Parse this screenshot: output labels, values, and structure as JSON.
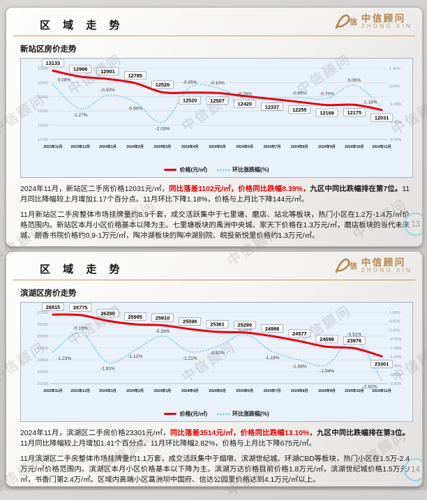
{
  "page": {
    "watermark": "中信顾问"
  },
  "slides": [
    {
      "header": {
        "title": "区 域 走 势",
        "logo_mark_char": "信",
        "logo_name": "中信顾问",
        "logo_sub": "ZHONG XIN"
      },
      "section_title": "新站区房价走势",
      "page_number": "13",
      "chart_index": 0,
      "paragraphs": [
        {
          "segments": [
            {
              "t": "2024年11月，新站区二手房价格12031元/㎡，",
              "s": "n"
            },
            {
              "t": "同比落差1102元/㎡，价格同比跌幅8.39%，",
              "s": "rb"
            },
            {
              "t": "九区中同比跌幅排在第7位。",
              "s": "b"
            },
            {
              "t": "11月同比降幅较上月增加1.17个百分点。11月环比下降1.18%，价格与上月比下降144元/㎡。",
              "s": "n"
            }
          ]
        },
        {
          "segments": [
            {
              "t": "11月新站区二手房整体市场挂牌量约8.9千套，成交活跃集中于七里塘、磨店、站北等板块，热门小区在1.2万-1.4万/㎡价格范围内。新站区本月小区价格基本以降为主。七里塘板块的禹洲中央城、家天下价格在1.3万元/㎡，磨店板块的当代未来城、朗香书院价格约0.9-1万元/㎡，陶冲湖板块的陶冲湖别院、皖投新悦里价格约1.3万元/㎡。",
              "s": "n"
            }
          ]
        }
      ]
    },
    {
      "header": {
        "title": "区 域 走 势",
        "logo_mark_char": "信",
        "logo_name": "中信顾问",
        "logo_sub": "ZHONG XIN"
      },
      "section_title": "滨湖区房价走势",
      "page_number": "14",
      "chart_index": 1,
      "paragraphs": [
        {
          "segments": [
            {
              "t": "2024年11月，滨湖区二手房价格23301元/㎡，",
              "s": "n"
            },
            {
              "t": "同比落差3514元/㎡，价格同比跌幅13.10%，",
              "s": "rb"
            },
            {
              "t": "九区中同比跌幅排在第3位。",
              "s": "b"
            },
            {
              "t": "11月同比降幅较上月增加1.41个百分点。11月环比降幅2.82%，价格与上月比下降675元/㎡。",
              "s": "n"
            }
          ]
        },
        {
          "segments": [
            {
              "t": "11月滨湖区二手房整体市场挂牌量约1.1万套，成交活跃集中于烟墩、滨湖世纪城、环湖CBD等板块，热门小区在1.5万-2.4万元/㎡价格范围内。滨湖区本月小区价格基本以下降为主。滨湖万达价格目前价格1.8万元/㎡，滨湖世纪城价格1.5万元/㎡，书香门第2.4万/㎡。区域内高端小区葛洲坝中国府、信达公园里价格达到4.1万元/㎡以上。",
              "s": "n"
            }
          ]
        }
      ]
    }
  ],
  "chart_data": [
    {
      "type": "line",
      "title": "新站区房价走势",
      "x": [
        "2023年11月",
        "2023年12月",
        "2024年1月",
        "2024年2月",
        "2024年3月",
        "2024年4月",
        "2024年5月",
        "2024年6月",
        "2024年7月",
        "2024年8月",
        "2024年9月",
        "2024年10月",
        "2024年11月"
      ],
      "series": [
        {
          "name": "价格(元/㎡)",
          "axis": "left",
          "style": "solid",
          "color": "#e60012",
          "values": [
            13133,
            12966,
            12901,
            12785,
            12526,
            12520,
            12507,
            12420,
            12337,
            12255,
            12169,
            12175,
            12031
          ]
        },
        {
          "name": "环比涨跌幅(%)",
          "axis": "right",
          "style": "dotted",
          "color": "#56c2ef",
          "values": [
            0.08,
            -1.27,
            -0.5,
            -0.9,
            -2.03,
            -0.05,
            -0.1,
            -0.7,
            -0.67,
            -0.66,
            -0.7,
            0.05,
            -1.18
          ]
        }
      ],
      "left_axis": {
        "ticks": [
          13200,
          12800,
          12400,
          12000,
          11600,
          11200
        ]
      },
      "right_axis": {
        "ticks": [
          1.0,
          0.0,
          -1.0,
          -2.0,
          -3.0
        ]
      },
      "grid": true,
      "legend_position": "bottom"
    },
    {
      "type": "line",
      "title": "滨湖区房价走势",
      "x": [
        "2023年11月",
        "2023年12月",
        "2024年1月",
        "2024年2月",
        "2024年3月",
        "2024年4月",
        "2024年5月",
        "2024年6月",
        "2024年7月",
        "2024年8月",
        "2024年9月",
        "2024年10月",
        "2024年11月"
      ],
      "series": [
        {
          "name": "价格(元/㎡)",
          "axis": "left",
          "style": "solid",
          "color": "#e60012",
          "values": [
            26815,
            26775,
            26290,
            25995,
            25910,
            25596,
            25361,
            25299,
            24998,
            24577,
            24099,
            23976,
            23301
          ]
        },
        {
          "name": "环比涨跌幅(%)",
          "axis": "right",
          "style": "dotted",
          "color": "#56c2ef",
          "values": [
            -1.23,
            -0.15,
            -1.81,
            -1.12,
            -0.33,
            -1.21,
            -0.92,
            -0.24,
            -1.19,
            -1.68,
            -1.94,
            -0.51,
            -2.82
          ]
        }
      ],
      "left_axis": {
        "ticks": [
          27000,
          26000,
          25000,
          24000,
          23000,
          22000,
          21000
        ]
      },
      "right_axis": {
        "ticks": [
          1.0,
          0.5,
          0.0,
          -0.5,
          -1.0,
          -1.5,
          -2.0,
          -2.5,
          -3.0
        ]
      },
      "grid": true,
      "legend_position": "bottom"
    }
  ]
}
